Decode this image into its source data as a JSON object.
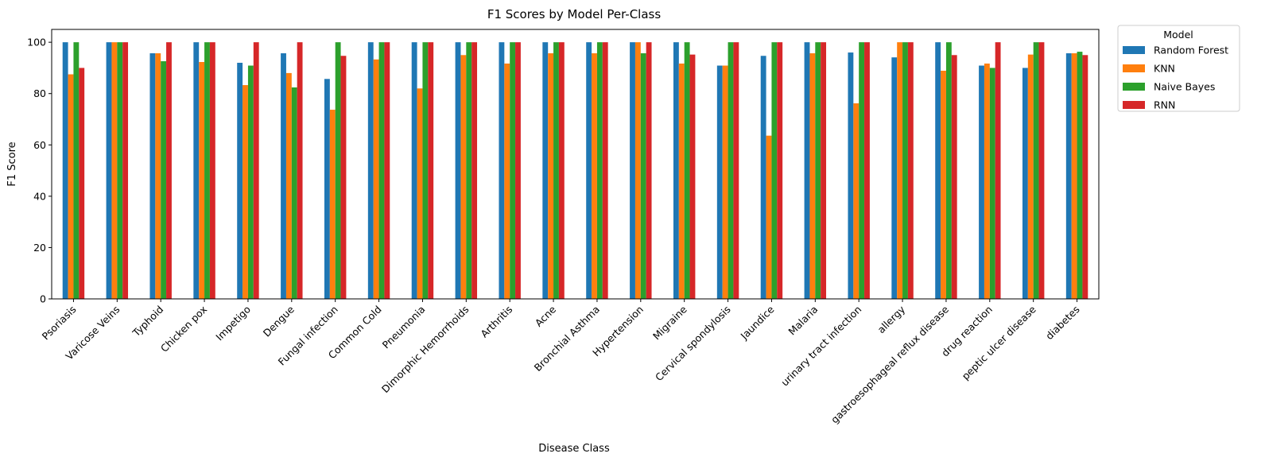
{
  "chart_data": {
    "type": "bar",
    "title": "F1 Scores by Model Per-Class",
    "xlabel": "Disease Class",
    "ylabel": "F1 Score",
    "ylim": [
      0,
      105
    ],
    "yticks": [
      "0",
      "20",
      "40",
      "60",
      "80",
      "100"
    ],
    "grid": false,
    "legend": {
      "title": "Model",
      "placement": "outside-top-right"
    },
    "categories": [
      "Psoriasis",
      "Varicose Veins",
      "Typhoid",
      "Chicken pox",
      "Impetigo",
      "Dengue",
      "Fungal infection",
      "Common Cold",
      "Pneumonia",
      "Dimorphic Hemorrhoids",
      "Arthritis",
      "Acne",
      "Bronchial Asthma",
      "Hypertension",
      "Migraine",
      "Cervical spondylosis",
      "Jaundice",
      "Malaria",
      "urinary tract infection",
      "allergy",
      "gastroesophageal reflux disease",
      "drug reaction",
      "peptic ulcer disease",
      "diabetes"
    ],
    "series": [
      {
        "name": "Random Forest",
        "color": "#1f77b4",
        "values": [
          100,
          100,
          95.7,
          100,
          92,
          95.7,
          85.7,
          100,
          100,
          100,
          100,
          100,
          100,
          100,
          100,
          90.9,
          94.7,
          100,
          96,
          94.1,
          100,
          90.9,
          90,
          95.7
        ]
      },
      {
        "name": "KNN",
        "color": "#ff7f0e",
        "values": [
          87.5,
          100,
          95.7,
          92.3,
          83.3,
          88,
          73.7,
          93.3,
          82,
          95,
          91.7,
          95.7,
          95.7,
          100,
          91.7,
          90.9,
          63.6,
          95.7,
          76.2,
          100,
          88.9,
          91.7,
          95.2,
          95.7
        ]
      },
      {
        "name": "Naive Bayes",
        "color": "#2ca02c",
        "values": [
          100,
          100,
          92.6,
          100,
          90.9,
          82.4,
          100,
          100,
          100,
          100,
          100,
          100,
          100,
          95.7,
          100,
          100,
          100,
          100,
          100,
          100,
          100,
          90,
          100,
          96.3
        ]
      },
      {
        "name": "RNN",
        "color": "#d62728",
        "values": [
          90,
          100,
          100,
          100,
          100,
          100,
          94.7,
          100,
          100,
          100,
          100,
          100,
          100,
          100,
          95.2,
          100,
          100,
          100,
          100,
          100,
          95,
          100,
          100,
          95
        ]
      }
    ]
  }
}
